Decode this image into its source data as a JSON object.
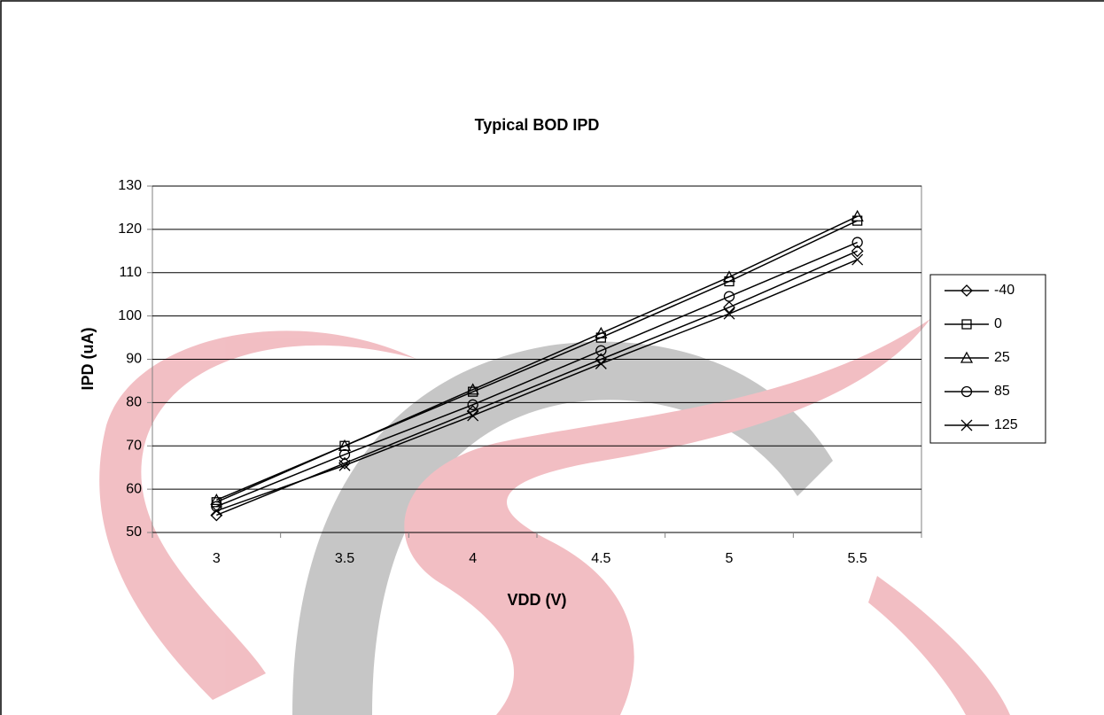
{
  "chart_data": {
    "type": "line",
    "title": "Typical BOD IPD",
    "x_label": "VDD (V)",
    "y_label": "IPD (uA)",
    "categories": [
      "3",
      "3.5",
      "4",
      "4.5",
      "5",
      "5.5"
    ],
    "ylim": [
      50,
      130
    ],
    "yticks": [
      50,
      60,
      70,
      80,
      90,
      100,
      110,
      120,
      130
    ],
    "grid": true,
    "legend": "right",
    "series": [
      {
        "name": "-40",
        "color": "#000000",
        "marker": "diamond",
        "values": [
          54,
          66,
          78,
          90,
          102,
          115
        ]
      },
      {
        "name": "0",
        "color": "#000000",
        "marker": "square",
        "values": [
          57,
          70,
          82.5,
          95,
          108,
          122
        ]
      },
      {
        "name": "25",
        "color": "#000000",
        "marker": "triangle",
        "values": [
          57.5,
          70,
          83,
          96,
          109,
          123
        ]
      },
      {
        "name": "85",
        "color": "#000000",
        "marker": "circle",
        "values": [
          56,
          68,
          79.5,
          92,
          104.5,
          117
        ]
      },
      {
        "name": "125",
        "color": "#000000",
        "marker": "x",
        "values": [
          55,
          65.5,
          77,
          89,
          100.5,
          113
        ]
      }
    ]
  }
}
